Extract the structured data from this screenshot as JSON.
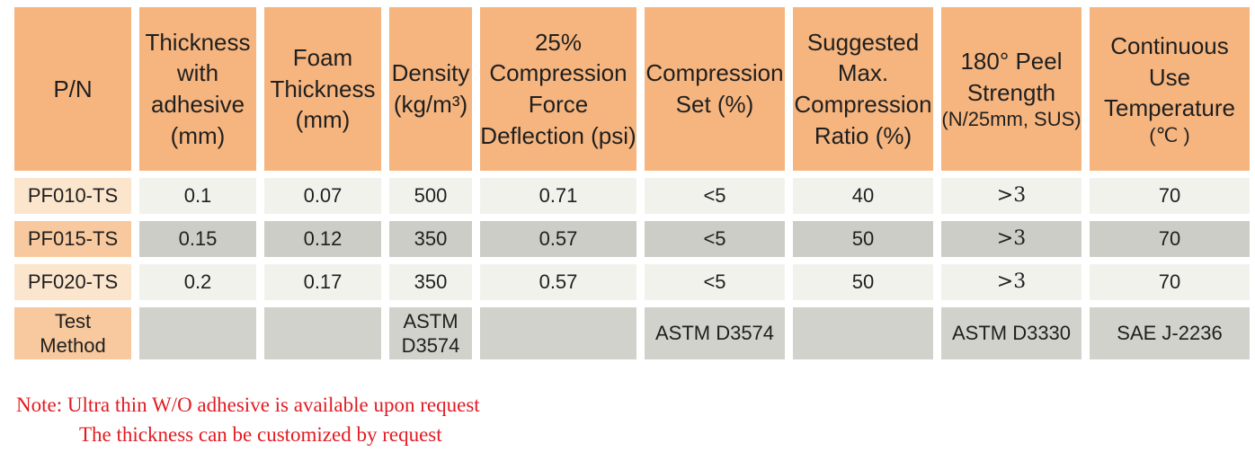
{
  "colors": {
    "header_bg": "#F6B57F",
    "pn_light_bg": "#FBE5CD",
    "pn_medium_bg": "#F8C99E",
    "row_light_bg": "#F2F2ED",
    "row_dark_bg": "#CDCDC7",
    "test_cell_bg": "#D2D2CC",
    "note_red": "#E21B22",
    "text": "#1F1F1F"
  },
  "table": {
    "header": [
      {
        "label": "P/N"
      },
      {
        "label": "Thickness\nwith\nadhesive\n(mm)"
      },
      {
        "label": "Foam\nThickness\n(mm)"
      },
      {
        "label": "Density\n(kg/m³)"
      },
      {
        "label": "25%\nCompression\nForce\nDeflection (psi)"
      },
      {
        "label": "Compression\nSet (%)"
      },
      {
        "label": "Suggested\nMax.\nCompression\nRatio (%)"
      },
      {
        "label": "180° Peel\nStrength",
        "sub": "(N/25mm, SUS)"
      },
      {
        "label": "Continuous\nUse\nTemperature",
        "sub": "(℃ )"
      }
    ],
    "rows": [
      {
        "pn": "PF010-TS",
        "values": [
          "0.1",
          "0.07",
          "500",
          "0.71",
          "<5",
          "40",
          ">3",
          "70"
        ]
      },
      {
        "pn": "PF015-TS",
        "values": [
          "0.15",
          "0.12",
          "350",
          "0.57",
          "<5",
          "50",
          ">3",
          "70"
        ]
      },
      {
        "pn": "PF020-TS",
        "values": [
          "0.2",
          "0.17",
          "350",
          "0.57",
          "<5",
          "50",
          ">3",
          "70"
        ]
      }
    ],
    "test_method": {
      "label": "Test\nMethod",
      "values": [
        "",
        "",
        "ASTM\nD3574",
        "",
        "ASTM D3574",
        "",
        "ASTM D3330",
        "SAE J-2236"
      ]
    }
  },
  "note": {
    "line1": "Note: Ultra thin W/O adhesive is available upon request",
    "line2": "The thickness can be customized by request"
  }
}
